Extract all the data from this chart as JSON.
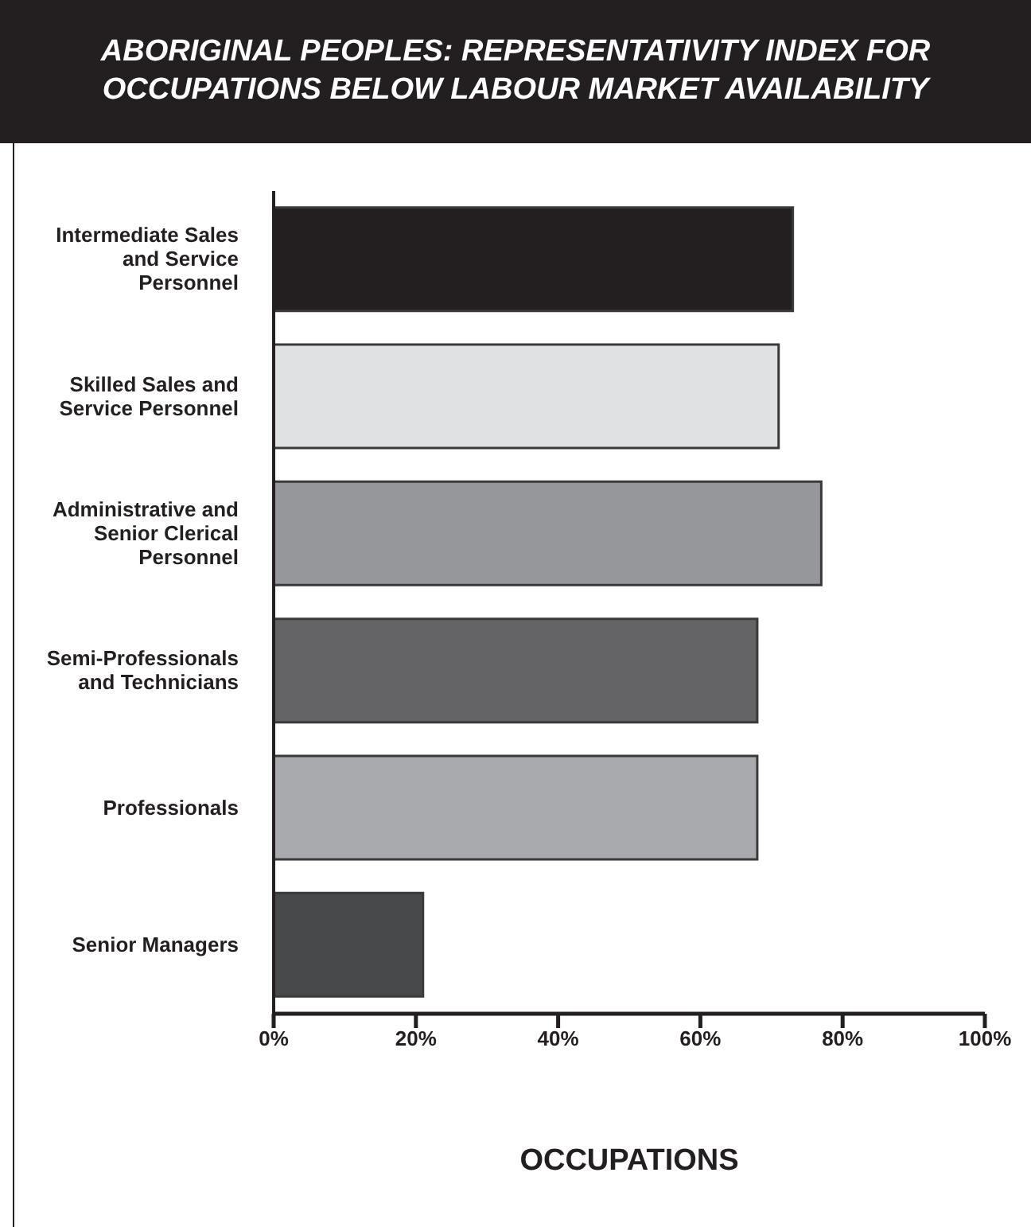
{
  "chart_data": {
    "type": "bar",
    "orientation": "horizontal",
    "title": "ABORIGINAL PEOPLES: REPRESENTATIVITY INDEX FOR OCCUPATIONS BELOW LABOUR MARKET AVAILABILITY",
    "xlabel": "OCCUPATIONS",
    "categories": [
      "Intermediate Sales and Service Personnel",
      "Skilled Sales and Service Personnel",
      "Administrative and Senior Clerical Personnel",
      "Semi-Professionals and Technicians",
      "Professionals",
      "Senior Managers"
    ],
    "values": [
      73,
      71,
      77,
      68,
      68,
      21
    ],
    "colors": [
      "#231f20",
      "#e0e1e3",
      "#96979a",
      "#646466",
      "#a9aaad",
      "#48494b"
    ],
    "xlim": [
      0,
      100
    ],
    "xticks": [
      {
        "value": 0,
        "label": "0%"
      },
      {
        "value": 20,
        "label": "20%"
      },
      {
        "value": 40,
        "label": "40%"
      },
      {
        "value": 60,
        "label": "60%"
      },
      {
        "value": 80,
        "label": "80%"
      },
      {
        "value": 100,
        "label": "100%"
      }
    ],
    "grid": false,
    "legend": false
  }
}
